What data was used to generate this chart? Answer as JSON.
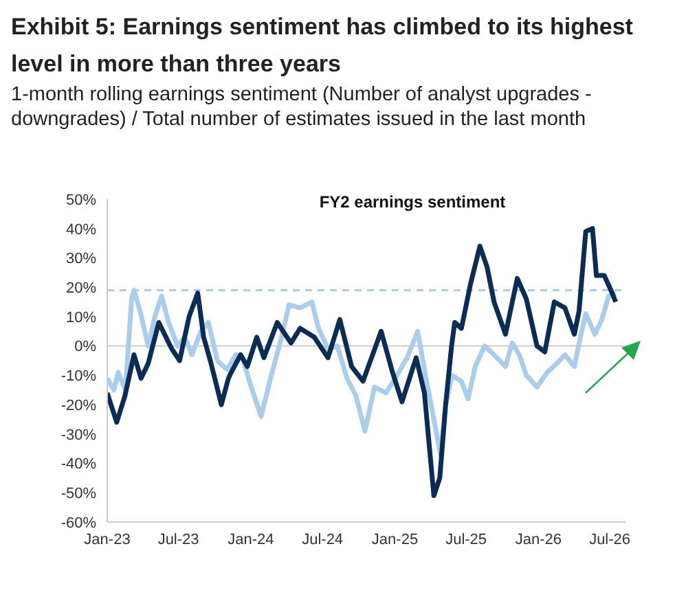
{
  "chart_data": {
    "type": "line",
    "title": "Exhibit 5: Earnings sentiment has climbed to its highest level in more than three years",
    "subtitle": "1-month rolling earnings sentiment (Number of analyst upgrades - downgrades) / Total number of estimates issued in the last month",
    "annotations": [
      "FY2 earnings sentiment"
    ],
    "xlim": [
      "2023-01-01",
      "2026-08-10"
    ],
    "xticks": [
      {
        "value": "2023-01-01",
        "label": "Jan-23"
      },
      {
        "value": "2023-07-01",
        "label": "Jul-23"
      },
      {
        "value": "2024-01-01",
        "label": "Jan-24"
      },
      {
        "value": "2024-07-01",
        "label": "Jul-24"
      },
      {
        "value": "2025-01-01",
        "label": "Jan-25"
      },
      {
        "value": "2025-07-01",
        "label": "Jul-25"
      },
      {
        "value": "2026-01-01",
        "label": "Jan-26"
      },
      {
        "value": "2026-07-01",
        "label": "Jul-26"
      }
    ],
    "ylim": [
      -60,
      50
    ],
    "yticks": [
      {
        "value": -60,
        "label": "-60%"
      },
      {
        "value": -50,
        "label": "-50%"
      },
      {
        "value": -40,
        "label": "-40%"
      },
      {
        "value": -30,
        "label": "-30%"
      },
      {
        "value": -20,
        "label": "-20%"
      },
      {
        "value": -10,
        "label": "-10%"
      },
      {
        "value": 0,
        "label": "0%"
      },
      {
        "value": 10,
        "label": "10%"
      },
      {
        "value": 20,
        "label": "20%"
      },
      {
        "value": 30,
        "label": "30%"
      },
      {
        "value": 40,
        "label": "40%"
      },
      {
        "value": 50,
        "label": "50%"
      }
    ],
    "grid": false,
    "legend": false,
    "marker": "none",
    "line_style": "solid",
    "ref_lines": [
      {
        "axis": "y",
        "value": 0,
        "color": "#d0d0d0",
        "line_style": "solid"
      },
      {
        "axis": "y",
        "value": 19,
        "color": "#9dc3e6",
        "line_style": "dashed"
      }
    ],
    "series": [
      {
        "color": "#a9cdea",
        "x": [
          "2023-01-01",
          "2023-01-18",
          "2023-01-29",
          "2023-02-16",
          "2023-03-04",
          "2023-03-10",
          "2023-03-27",
          "2023-04-15",
          "2023-05-02",
          "2023-05-19",
          "2023-06-06",
          "2023-06-29",
          "2023-07-17",
          "2023-08-04",
          "2023-08-27",
          "2023-09-15",
          "2023-10-08",
          "2023-11-01",
          "2023-11-24",
          "2023-12-11",
          "2023-12-28",
          "2024-01-27",
          "2024-02-20",
          "2024-03-19",
          "2024-04-07",
          "2024-05-05",
          "2024-06-04",
          "2024-06-21",
          "2024-07-15",
          "2024-08-08",
          "2024-09-01",
          "2024-09-24",
          "2024-10-17",
          "2024-11-10",
          "2024-12-09",
          "2025-01-02",
          "2025-02-01",
          "2025-02-28",
          "2025-03-17",
          "2025-04-10",
          "2025-04-27",
          "2025-05-09",
          "2025-05-26",
          "2025-06-19",
          "2025-07-06",
          "2025-07-24",
          "2025-08-17",
          "2025-09-10",
          "2025-10-09",
          "2025-10-26",
          "2025-11-13",
          "2025-12-01",
          "2025-12-28",
          "2026-01-23",
          "2026-02-16",
          "2026-03-09",
          "2026-04-02",
          "2026-04-19",
          "2026-05-01",
          "2026-05-24",
          "2026-06-11",
          "2026-06-28",
          "2026-07-16"
        ],
        "values": [
          -11,
          -15,
          -9,
          -15,
          16,
          19,
          11,
          0,
          10,
          17,
          8,
          0,
          3,
          -3,
          5,
          8,
          -5,
          -8,
          -3,
          -4,
          -12,
          -24,
          -11,
          3,
          14,
          13,
          15,
          6,
          -1,
          0,
          -11,
          -17,
          -29,
          -14,
          -16,
          -11,
          -4,
          5,
          -8,
          -25,
          -37,
          -21,
          -10,
          -12,
          -18,
          -7,
          0,
          -3,
          -7,
          1,
          -3,
          -10,
          -14,
          -9,
          -6,
          -3,
          -7,
          4,
          11,
          4,
          9,
          17,
          18
        ]
      },
      {
        "color": "#0b2d55",
        "x": [
          "2023-01-01",
          "2023-01-25",
          "2023-02-15",
          "2023-03-10",
          "2023-03-28",
          "2023-04-15",
          "2023-05-12",
          "2023-06-14",
          "2023-07-04",
          "2023-07-28",
          "2023-08-19",
          "2023-09-03",
          "2023-09-20",
          "2023-10-18",
          "2023-11-05",
          "2023-11-12",
          "2023-12-06",
          "2023-12-23",
          "2024-01-16",
          "2024-02-03",
          "2024-03-08",
          "2024-04-12",
          "2024-05-05",
          "2024-06-10",
          "2024-07-15",
          "2024-08-14",
          "2024-09-13",
          "2024-10-12",
          "2024-11-27",
          "2024-12-26",
          "2025-01-19",
          "2025-02-24",
          "2025-03-17",
          "2025-04-10",
          "2025-04-25",
          "2025-05-10",
          "2025-05-25",
          "2025-06-02",
          "2025-06-19",
          "2025-07-12",
          "2025-08-05",
          "2025-08-23",
          "2025-09-10",
          "2025-10-09",
          "2025-11-08",
          "2025-12-01",
          "2025-12-28",
          "2026-01-17",
          "2026-02-10",
          "2026-03-09",
          "2026-04-02",
          "2026-04-14",
          "2026-05-01",
          "2026-05-18",
          "2026-05-28",
          "2026-06-17",
          "2026-07-04",
          "2026-07-16"
        ],
        "values": [
          -16,
          -26,
          -17,
          -3,
          -11,
          -6,
          8,
          -1,
          -5,
          10,
          18,
          3,
          -5,
          -20,
          -11,
          -9,
          -3,
          -7,
          3,
          -4,
          8,
          1,
          6,
          3,
          -4,
          9,
          -7,
          -12,
          5,
          -9,
          -19,
          -4,
          -16,
          -51,
          -45,
          -20,
          0,
          8,
          6,
          21,
          34,
          27,
          15,
          4,
          23,
          16,
          0,
          -2,
          15,
          13,
          4,
          12,
          39,
          40,
          24,
          24,
          19,
          15
        ]
      }
    ]
  }
}
